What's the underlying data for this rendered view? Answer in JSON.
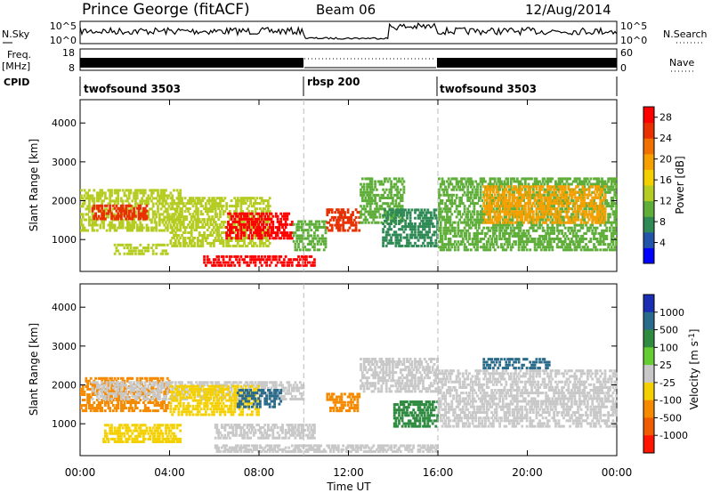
{
  "header": {
    "station": "Prince George (fitACF)",
    "beam": "Beam 06",
    "date": "12/Aug/2014"
  },
  "top_panels": {
    "nsky_label": "N.Sky",
    "nsky_ticks": [
      "10^5",
      "10^0"
    ],
    "nsearch_label": "N.Search",
    "nsearch_ticks": [
      "10^5",
      "10^0"
    ],
    "freq_label": "Freq.",
    "freq_unit": "[MHz]",
    "freq_ticks": [
      "18",
      "8"
    ],
    "nave_label": "Nave",
    "nave_ticks": [
      "60",
      "0"
    ],
    "cpid_label": "CPID",
    "cpid_segments": [
      {
        "name": "twofsound 3503",
        "start": 0,
        "end": 10
      },
      {
        "name": "rbsp 200",
        "start": 10,
        "end": 16
      },
      {
        "name": "twofsound 3503",
        "start": 16,
        "end": 24
      }
    ]
  },
  "chart_data": [
    {
      "type": "heatmap",
      "title": "",
      "quantity": "Power",
      "xlabel": "",
      "ylabel": "Slant Range [km]",
      "xlim": [
        0,
        24
      ],
      "ylim": [
        180,
        4600
      ],
      "y_ticks": [
        "1000",
        "2000",
        "3000",
        "4000"
      ],
      "colorbar_label": "Power [dB]",
      "colorbar_ticks": [
        "4",
        "8",
        "12",
        "16",
        "20",
        "24",
        "28"
      ],
      "colorbar_range": [
        0,
        30
      ],
      "colorscale": [
        "#0000ff",
        "#2255aa",
        "#2f8a55",
        "#5fae3a",
        "#b5cc22",
        "#f5d000",
        "#f5a000",
        "#f07000",
        "#e83000",
        "#ff0000"
      ],
      "echo_regions": [
        {
          "t": [
            0.0,
            4.5
          ],
          "range": [
            1200,
            2300
          ],
          "power": 14
        },
        {
          "t": [
            0.5,
            3.0
          ],
          "range": [
            1500,
            1900
          ],
          "power": 24
        },
        {
          "t": [
            1.5,
            4.0
          ],
          "range": [
            600,
            900
          ],
          "power": 12
        },
        {
          "t": [
            4.0,
            8.5
          ],
          "range": [
            800,
            2100
          ],
          "power": 12
        },
        {
          "t": [
            6.5,
            9.5
          ],
          "range": [
            1000,
            1700
          ],
          "power": 28
        },
        {
          "t": [
            5.5,
            10.5
          ],
          "range": [
            300,
            600
          ],
          "power": 28
        },
        {
          "t": [
            9.5,
            11.0
          ],
          "range": [
            700,
            1500
          ],
          "power": 10
        },
        {
          "t": [
            11.0,
            12.5
          ],
          "range": [
            1200,
            1800
          ],
          "power": 26
        },
        {
          "t": [
            12.5,
            14.5
          ],
          "range": [
            1400,
            2600
          ],
          "power": 10
        },
        {
          "t": [
            13.5,
            16.0
          ],
          "range": [
            800,
            1800
          ],
          "power": 8
        },
        {
          "t": [
            16.0,
            24.0
          ],
          "range": [
            700,
            2600
          ],
          "power": 10
        },
        {
          "t": [
            18.0,
            23.5
          ],
          "range": [
            1400,
            2400
          ],
          "power": 18
        }
      ]
    },
    {
      "type": "heatmap",
      "title": "",
      "quantity": "Velocity",
      "xlabel": "Time UT",
      "ylabel": "Slant Range [km]",
      "xlim": [
        0,
        24
      ],
      "ylim": [
        180,
        4600
      ],
      "x_ticks": [
        "00:00",
        "04:00",
        "08:00",
        "12:00",
        "16:00",
        "20:00",
        "00:00"
      ],
      "y_ticks": [
        "1000",
        "2000",
        "3000",
        "4000"
      ],
      "colorbar_label": "Velocity [m s^-1]",
      "colorbar_ticks": [
        "1000",
        "500",
        "100",
        "25",
        "-25",
        "-100",
        "-500",
        "-1000"
      ],
      "colorscale": [
        "#1a2eb4",
        "#2a6a8a",
        "#2e8b40",
        "#66cc33",
        "#c8c8c8",
        "#f5d000",
        "#f58a00",
        "#f05a00",
        "#ff1500"
      ],
      "echo_regions": [
        {
          "t": [
            0.0,
            4.0
          ],
          "range": [
            1300,
            2200
          ],
          "velocity": -500
        },
        {
          "t": [
            0.5,
            10.0
          ],
          "range": [
            1600,
            2100
          ],
          "velocity": 0
        },
        {
          "t": [
            1.0,
            4.5
          ],
          "range": [
            500,
            1000
          ],
          "velocity": -100
        },
        {
          "t": [
            4.0,
            8.0
          ],
          "range": [
            1200,
            2000
          ],
          "velocity": -100
        },
        {
          "t": [
            7.0,
            9.0
          ],
          "range": [
            1400,
            1900
          ],
          "velocity": 500
        },
        {
          "t": [
            6.0,
            10.5
          ],
          "range": [
            600,
            1000
          ],
          "velocity": 0
        },
        {
          "t": [
            6.0,
            16.0
          ],
          "range": [
            250,
            450
          ],
          "velocity": -25
        },
        {
          "t": [
            11.0,
            12.5
          ],
          "range": [
            1300,
            1800
          ],
          "velocity": -500
        },
        {
          "t": [
            12.5,
            16.0
          ],
          "range": [
            1800,
            2700
          ],
          "velocity": 0
        },
        {
          "t": [
            14.0,
            16.0
          ],
          "range": [
            900,
            1600
          ],
          "velocity": 100
        },
        {
          "t": [
            16.0,
            24.0
          ],
          "range": [
            900,
            2400
          ],
          "velocity": 0
        },
        {
          "t": [
            18.0,
            21.0
          ],
          "range": [
            2400,
            2700
          ],
          "velocity": 500
        }
      ]
    }
  ]
}
